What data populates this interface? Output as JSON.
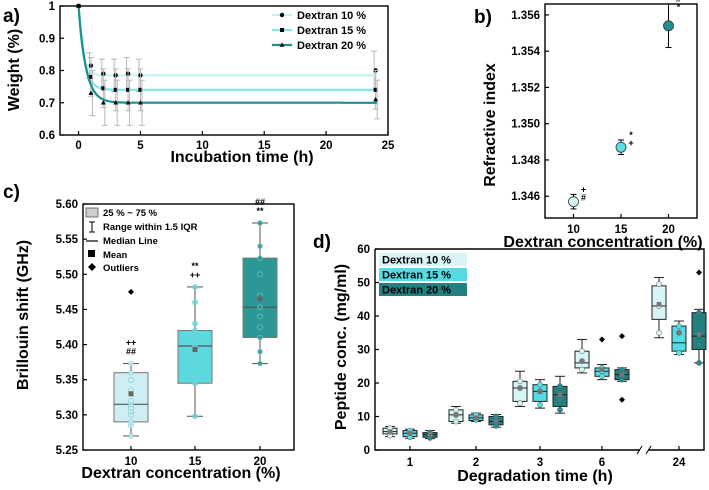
{
  "colors": {
    "d10": "#d8f7f9",
    "d15": "#5fe3ea",
    "d20": "#1f9e9c",
    "pa10": "#c4f1f3",
    "pa15": "#7fe6ea",
    "pa20": "#1a9090",
    "pc10": "#cdeef2",
    "pc15": "#5cd8df",
    "pc20": "#2d9797",
    "pd10": "#d7f4f6",
    "pd15": "#55dbe3",
    "pd20": "#247f7f",
    "pb10": "#d6f4f6",
    "pb15": "#55dfe6",
    "pb20": "#248f92"
  },
  "chart_data": [
    {
      "panel": "a)",
      "type": "line",
      "xlabel": "Incubation time (h)",
      "ylabel": "Weight (%)",
      "xlim": [
        -1.5,
        25
      ],
      "ylim": [
        0.6,
        1.0
      ],
      "xticks": [
        0,
        5,
        10,
        15,
        20,
        25
      ],
      "xtick_labels": [
        "0",
        "5",
        "10",
        "15",
        "20",
        "25"
      ],
      "yticks": [
        0.6,
        0.7,
        0.8,
        0.9,
        1.0
      ],
      "ytick_labels": [
        "0.6",
        "0.7",
        "0.8",
        "0.9",
        "1"
      ],
      "series": [
        {
          "name": "Dextran 10 %",
          "color_key": "pa10",
          "marker": "circle",
          "x": [
            0,
            1,
            2,
            3,
            4,
            5,
            24
          ],
          "y": [
            1.0,
            0.815,
            0.79,
            0.785,
            0.79,
            0.785,
            0.8
          ],
          "err": [
            0,
            0.04,
            0.045,
            0.05,
            0.05,
            0.05,
            0.06
          ],
          "fit_plateau": 0.785,
          "fit_k": 3.0
        },
        {
          "name": "Dextran 15 %",
          "color_key": "pa15",
          "marker": "square",
          "x": [
            0,
            1,
            2,
            3,
            4,
            5,
            24
          ],
          "y": [
            1.0,
            0.78,
            0.745,
            0.74,
            0.74,
            0.74,
            0.74
          ],
          "err": [
            0,
            0.06,
            0.06,
            0.065,
            0.065,
            0.065,
            0.06
          ],
          "fit_plateau": 0.74,
          "fit_k": 2.2
        },
        {
          "name": "Dextran 20 %",
          "color_key": "pa20",
          "marker": "triangle",
          "x": [
            0,
            1,
            2,
            3,
            4,
            5,
            24
          ],
          "y": [
            1.0,
            0.73,
            0.7,
            0.7,
            0.7,
            0.7,
            0.71
          ],
          "err": [
            0,
            0.07,
            0.07,
            0.07,
            0.07,
            0.07,
            0.06
          ],
          "fit_plateau": 0.7,
          "fit_k": 1.7
        }
      ]
    },
    {
      "panel": "b)",
      "type": "scatter",
      "xlabel": "Dextran concentration (%)",
      "ylabel": "Refractive index",
      "xlim": [
        7,
        23
      ],
      "ylim": [
        1.3448,
        1.3566
      ],
      "xticks": [
        10,
        15,
        20
      ],
      "xtick_labels": [
        "10",
        "15",
        "20"
      ],
      "yticks": [
        1.346,
        1.348,
        1.35,
        1.352,
        1.354,
        1.356
      ],
      "ytick_labels": [
        "1.346",
        "1.348",
        "1.350",
        "1.352",
        "1.354",
        "1.356"
      ],
      "points": [
        {
          "x": 10,
          "y": 1.3457,
          "err": 0.0004,
          "color_key": "pb10",
          "marks": [
            "+",
            "#"
          ]
        },
        {
          "x": 15,
          "y": 1.3487,
          "err": 0.0004,
          "color_key": "pb15",
          "marks": [
            "*",
            "+"
          ]
        },
        {
          "x": 20,
          "y": 1.3554,
          "err": 0.0012,
          "color_key": "pb20",
          "marks": [
            "#",
            "*"
          ]
        }
      ]
    },
    {
      "panel": "c)",
      "type": "box",
      "xlabel": "Dextran concentration (%)",
      "ylabel": "Brillouin shift (GHz)",
      "ylim": [
        5.25,
        5.6
      ],
      "yticks": [
        5.25,
        5.3,
        5.35,
        5.4,
        5.45,
        5.5,
        5.55,
        5.6
      ],
      "ytick_labels": [
        "5.25",
        "5.30",
        "5.35",
        "5.40",
        "5.45",
        "5.50",
        "5.55",
        "5.60"
      ],
      "categories": [
        "10",
        "15",
        "20"
      ],
      "legend": [
        "25 % ~ 75 %",
        "Range within 1.5 IQR",
        "Median Line",
        "Mean",
        "Outliers"
      ],
      "boxes": [
        {
          "q1": 5.29,
          "median": 5.315,
          "q3": 5.36,
          "wlo": 5.27,
          "whi": 5.373,
          "mean": 5.33,
          "outliers": [
            5.475
          ],
          "color_key": "pc10",
          "points": [
            5.27,
            5.285,
            5.29,
            5.3,
            5.305,
            5.31,
            5.315,
            5.32,
            5.335,
            5.35,
            5.36,
            5.373
          ],
          "marks": [
            "++",
            "##"
          ]
        },
        {
          "q1": 5.345,
          "median": 5.398,
          "q3": 5.42,
          "wlo": 5.298,
          "whi": 5.482,
          "mean": 5.393,
          "outliers": [],
          "color_key": "pc15",
          "points": [
            5.298,
            5.345,
            5.35,
            5.37,
            5.385,
            5.398,
            5.41,
            5.42,
            5.43,
            5.46,
            5.482
          ],
          "marks": [
            "**",
            "++"
          ]
        },
        {
          "q1": 5.41,
          "median": 5.453,
          "q3": 5.523,
          "wlo": 5.373,
          "whi": 5.573,
          "mean": 5.465,
          "outliers": [],
          "color_key": "pc20",
          "points": [
            5.373,
            5.39,
            5.41,
            5.425,
            5.44,
            5.453,
            5.47,
            5.5,
            5.523,
            5.54,
            5.573
          ],
          "marks": [
            "##",
            "**"
          ]
        }
      ]
    },
    {
      "panel": "d)",
      "type": "box",
      "xlabel": "Degradation time (h)",
      "ylabel": "Peptide conc. (mg/ml)",
      "ylim": [
        0,
        60
      ],
      "yticks": [
        0,
        10,
        20,
        30,
        40,
        50,
        60
      ],
      "ytick_labels": [
        "0",
        "10",
        "20",
        "30",
        "40",
        "50",
        "60"
      ],
      "categories": [
        "1",
        "2",
        "3",
        "6",
        "24"
      ],
      "axis_break_between": [
        "6",
        "24"
      ],
      "series_names": [
        "Dextran 10 %",
        "Dextran 15 %",
        "Dextran 20 %"
      ],
      "groups": [
        {
          "time": "1",
          "boxes": [
            {
              "q1": 4.8,
              "median": 5.5,
              "q3": 6.5,
              "wlo": 4.0,
              "whi": 7.0,
              "mean": 5.5,
              "outliers": [],
              "points": [
                4.3,
                5.4,
                6.5
              ]
            },
            {
              "q1": 4.0,
              "median": 5.0,
              "q3": 5.8,
              "wlo": 3.5,
              "whi": 6.2,
              "mean": 5.0,
              "outliers": [],
              "points": [
                3.8,
                5.0,
                5.8
              ]
            },
            {
              "q1": 3.8,
              "median": 4.6,
              "q3": 5.2,
              "wlo": 3.4,
              "whi": 5.8,
              "mean": 4.6,
              "outliers": [],
              "points": [
                3.6,
                4.6,
                5.2
              ]
            }
          ]
        },
        {
          "time": "2",
          "boxes": [
            {
              "q1": 8.5,
              "median": 10.5,
              "q3": 12.0,
              "wlo": 8.0,
              "whi": 13.0,
              "mean": 10.5,
              "outliers": [],
              "points": [
                8.5,
                10.5,
                12.0
              ]
            },
            {
              "q1": 8.8,
              "median": 9.6,
              "q3": 10.5,
              "wlo": 8.5,
              "whi": 11.0,
              "mean": 9.6,
              "outliers": [],
              "points": [
                9.0,
                9.6,
                10.5
              ]
            },
            {
              "q1": 7.5,
              "median": 8.5,
              "q3": 10.0,
              "wlo": 6.8,
              "whi": 10.6,
              "mean": 8.6,
              "outliers": [],
              "points": [
                7.2,
                8.5,
                10.0
              ]
            }
          ]
        },
        {
          "time": "3",
          "boxes": [
            {
              "q1": 14.5,
              "median": 18.5,
              "q3": 20.5,
              "wlo": 13.0,
              "whi": 23.5,
              "mean": 18.5,
              "outliers": [],
              "points": [
                14.0,
                18.5,
                20.5
              ]
            },
            {
              "q1": 14.5,
              "median": 17.5,
              "q3": 19.5,
              "wlo": 12.5,
              "whi": 21.0,
              "mean": 17.5,
              "outliers": [],
              "points": [
                13.5,
                17.5,
                19.5
              ]
            },
            {
              "q1": 13.0,
              "median": 16.5,
              "q3": 19.0,
              "wlo": 11.0,
              "whi": 22.0,
              "mean": 16.5,
              "outliers": [],
              "points": [
                12.0,
                15.0,
                19.0
              ]
            }
          ]
        },
        {
          "time": "6",
          "boxes": [
            {
              "q1": 24.5,
              "median": 26.0,
              "q3": 29.5,
              "wlo": 23.0,
              "whi": 33.0,
              "mean": 26.5,
              "outliers": [],
              "points": [
                24.0,
                26.5,
                29.5
              ]
            },
            {
              "q1": 22.0,
              "median": 23.5,
              "q3": 24.5,
              "wlo": 21.0,
              "whi": 25.5,
              "mean": 24.0,
              "outliers": [
                33.0
              ],
              "points": [
                22.0,
                23.5,
                24.5
              ]
            },
            {
              "q1": 21.0,
              "median": 22.5,
              "q3": 24.0,
              "wlo": 20.5,
              "whi": 24.5,
              "mean": 22.5,
              "outliers": [
                34.0,
                15.0
              ],
              "points": [
                21.0,
                22.5,
                24.0
              ]
            }
          ]
        },
        {
          "time": "24",
          "boxes": [
            {
              "q1": 39.0,
              "median": 43.0,
              "q3": 49.0,
              "wlo": 33.5,
              "whi": 51.5,
              "mean": 43.5,
              "outliers": [],
              "points": [
                35.0,
                43.0,
                49.5
              ]
            },
            {
              "q1": 29.5,
              "median": 32.0,
              "q3": 37.0,
              "wlo": 28.5,
              "whi": 38.5,
              "mean": 35.0,
              "outliers": [],
              "points": [
                29.0,
                35.0,
                37.0
              ]
            },
            {
              "q1": 30.0,
              "median": 34.0,
              "q3": 41.0,
              "wlo": 26.0,
              "whi": 42.0,
              "mean": 34.5,
              "outliers": [
                53.0
              ],
              "points": [
                26.0,
                31.5,
                41.0
              ]
            }
          ]
        }
      ]
    }
  ]
}
